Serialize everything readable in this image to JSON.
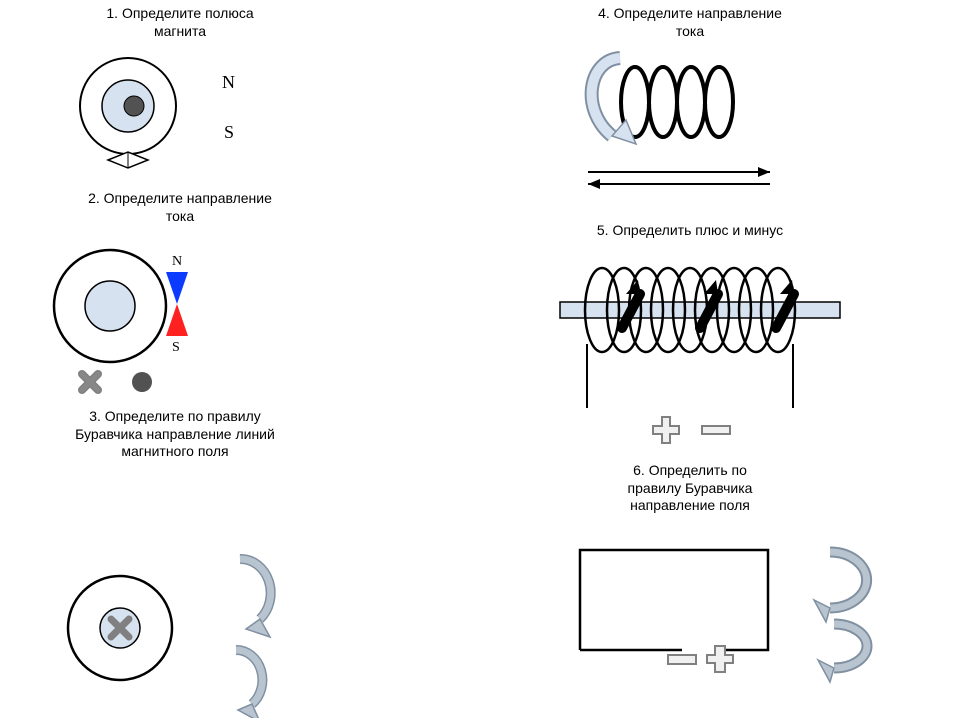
{
  "colors": {
    "bg": "#ffffff",
    "stroke": "#000000",
    "lightBlueFill": "#d6e2f0",
    "darkDot": "#525252",
    "crossGray": "#808080",
    "compassN": "#0a3bff",
    "compassS": "#ff2020",
    "arrowGray": "#b8c4d0",
    "arrowGrayStroke": "#8090a0",
    "plusMinusFill": "#f0f0f0",
    "plusMinusStroke": "#808080"
  },
  "panel1": {
    "title": "1. Определите полюса\nмагнита",
    "nLabel": "N",
    "sLabel": "S",
    "outerR": 48,
    "innerR": 26,
    "dotR": 10
  },
  "panel2": {
    "title": "2. Определите направление\nтока",
    "nLabel": "N",
    "sLabel": "S",
    "outerR": 56,
    "innerR": 25
  },
  "panel3": {
    "title": "3. Определите по правилу\nБуравчика направление линий\nмагнитного поля",
    "outerR": 52,
    "innerR": 20
  },
  "panel4": {
    "title": "4. Определите направление\nтока"
  },
  "panel5": {
    "title": "5. Определить плюс и минус"
  },
  "panel6": {
    "title": "6. Определить по\nправилу Буравчика\nнаправление поля"
  }
}
